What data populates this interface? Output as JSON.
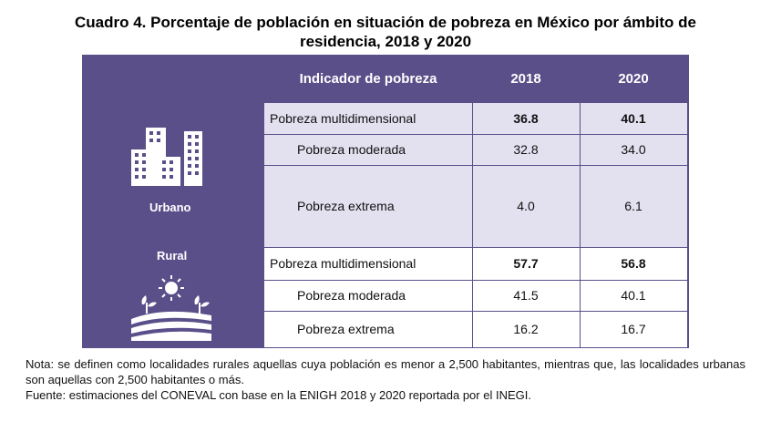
{
  "title": "Cuadro 4. Porcentaje de población en situación de pobreza en México por ámbito de residencia, 2018 y 2020",
  "header": {
    "indicator": "Indicador de pobreza",
    "year1": "2018",
    "year2": "2020"
  },
  "urban": {
    "label": "Urbano",
    "icon": "city-buildings-icon",
    "rows": [
      {
        "indicator": "Pobreza multidimensional",
        "v2018": "36.8",
        "v2020": "40.1",
        "bold": true
      },
      {
        "indicator": "Pobreza moderada",
        "v2018": "32.8",
        "v2020": "34.0",
        "bold": false
      },
      {
        "indicator": "Pobreza extrema",
        "v2018": "4.0",
        "v2020": "6.1",
        "bold": false
      }
    ]
  },
  "rural": {
    "label": "Rural",
    "icon": "rural-fields-sun-icon",
    "rows": [
      {
        "indicator": "Pobreza multidimensional",
        "v2018": "57.7",
        "v2020": "56.8",
        "bold": true
      },
      {
        "indicator": "Pobreza moderada",
        "v2018": "41.5",
        "v2020": "40.1",
        "bold": false
      },
      {
        "indicator": "Pobreza extrema",
        "v2018": "16.2",
        "v2020": "16.7",
        "bold": false
      }
    ]
  },
  "notes": {
    "note": "Nota: se definen como localidades rurales aquellas cuya población es menor a 2,500 habitantes, mientras que, las localidades urbanas son aquellas con 2,500 habitantes o más.",
    "source": "Fuente: estimaciones del CONEVAL con base en la ENIGH 2018 y 2020 reportada por el INEGI."
  },
  "colors": {
    "panel": "#5b4f8a",
    "highlight_row": "#e3e0f0",
    "text_on_panel": "#ffffff"
  }
}
